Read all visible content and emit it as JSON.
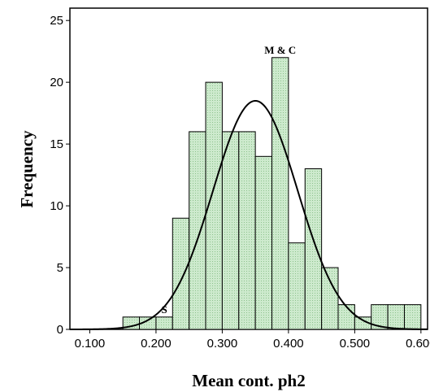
{
  "chart_data": {
    "type": "bar",
    "subtype": "histogram",
    "xlabel": "Mean cont. ph2",
    "ylabel": "Frequency",
    "x_ticks": [
      "0.100",
      "0.200",
      "0.300",
      "0.400",
      "0.500",
      "0.600"
    ],
    "x_tick_values": [
      0.1,
      0.2,
      0.3,
      0.4,
      0.5,
      0.6
    ],
    "y_ticks": [
      "0",
      "5",
      "10",
      "15",
      "20",
      "25"
    ],
    "y_tick_values": [
      0,
      5,
      10,
      15,
      20,
      25
    ],
    "xlim": [
      0.07,
      0.61
    ],
    "ylim": [
      0,
      26
    ],
    "bin_width": 0.025,
    "bins": [
      {
        "start": 0.15,
        "value": 1
      },
      {
        "start": 0.175,
        "value": 1
      },
      {
        "start": 0.2,
        "value": 1
      },
      {
        "start": 0.225,
        "value": 9
      },
      {
        "start": 0.25,
        "value": 16
      },
      {
        "start": 0.275,
        "value": 20
      },
      {
        "start": 0.3,
        "value": 16
      },
      {
        "start": 0.325,
        "value": 16
      },
      {
        "start": 0.35,
        "value": 14
      },
      {
        "start": 0.375,
        "value": 22
      },
      {
        "start": 0.4,
        "value": 7
      },
      {
        "start": 0.425,
        "value": 13
      },
      {
        "start": 0.45,
        "value": 5
      },
      {
        "start": 0.475,
        "value": 2
      },
      {
        "start": 0.5,
        "value": 1
      },
      {
        "start": 0.525,
        "value": 2
      },
      {
        "start": 0.55,
        "value": 2
      },
      {
        "start": 0.575,
        "value": 2
      }
    ],
    "normal_curve": {
      "mean": 0.35,
      "std_dev": 0.064,
      "peak": 18.5
    },
    "annotations": [
      {
        "text": "S",
        "x": 0.2125,
        "y": 1
      },
      {
        "text": "M & C",
        "x": 0.3875,
        "y": 22
      }
    ],
    "colors": {
      "bar_fill": "#cdeacd",
      "bar_dot": "#8fc28f",
      "bar_stroke": "#000000",
      "curve": "#000000"
    },
    "grid": false,
    "legend": "none"
  }
}
